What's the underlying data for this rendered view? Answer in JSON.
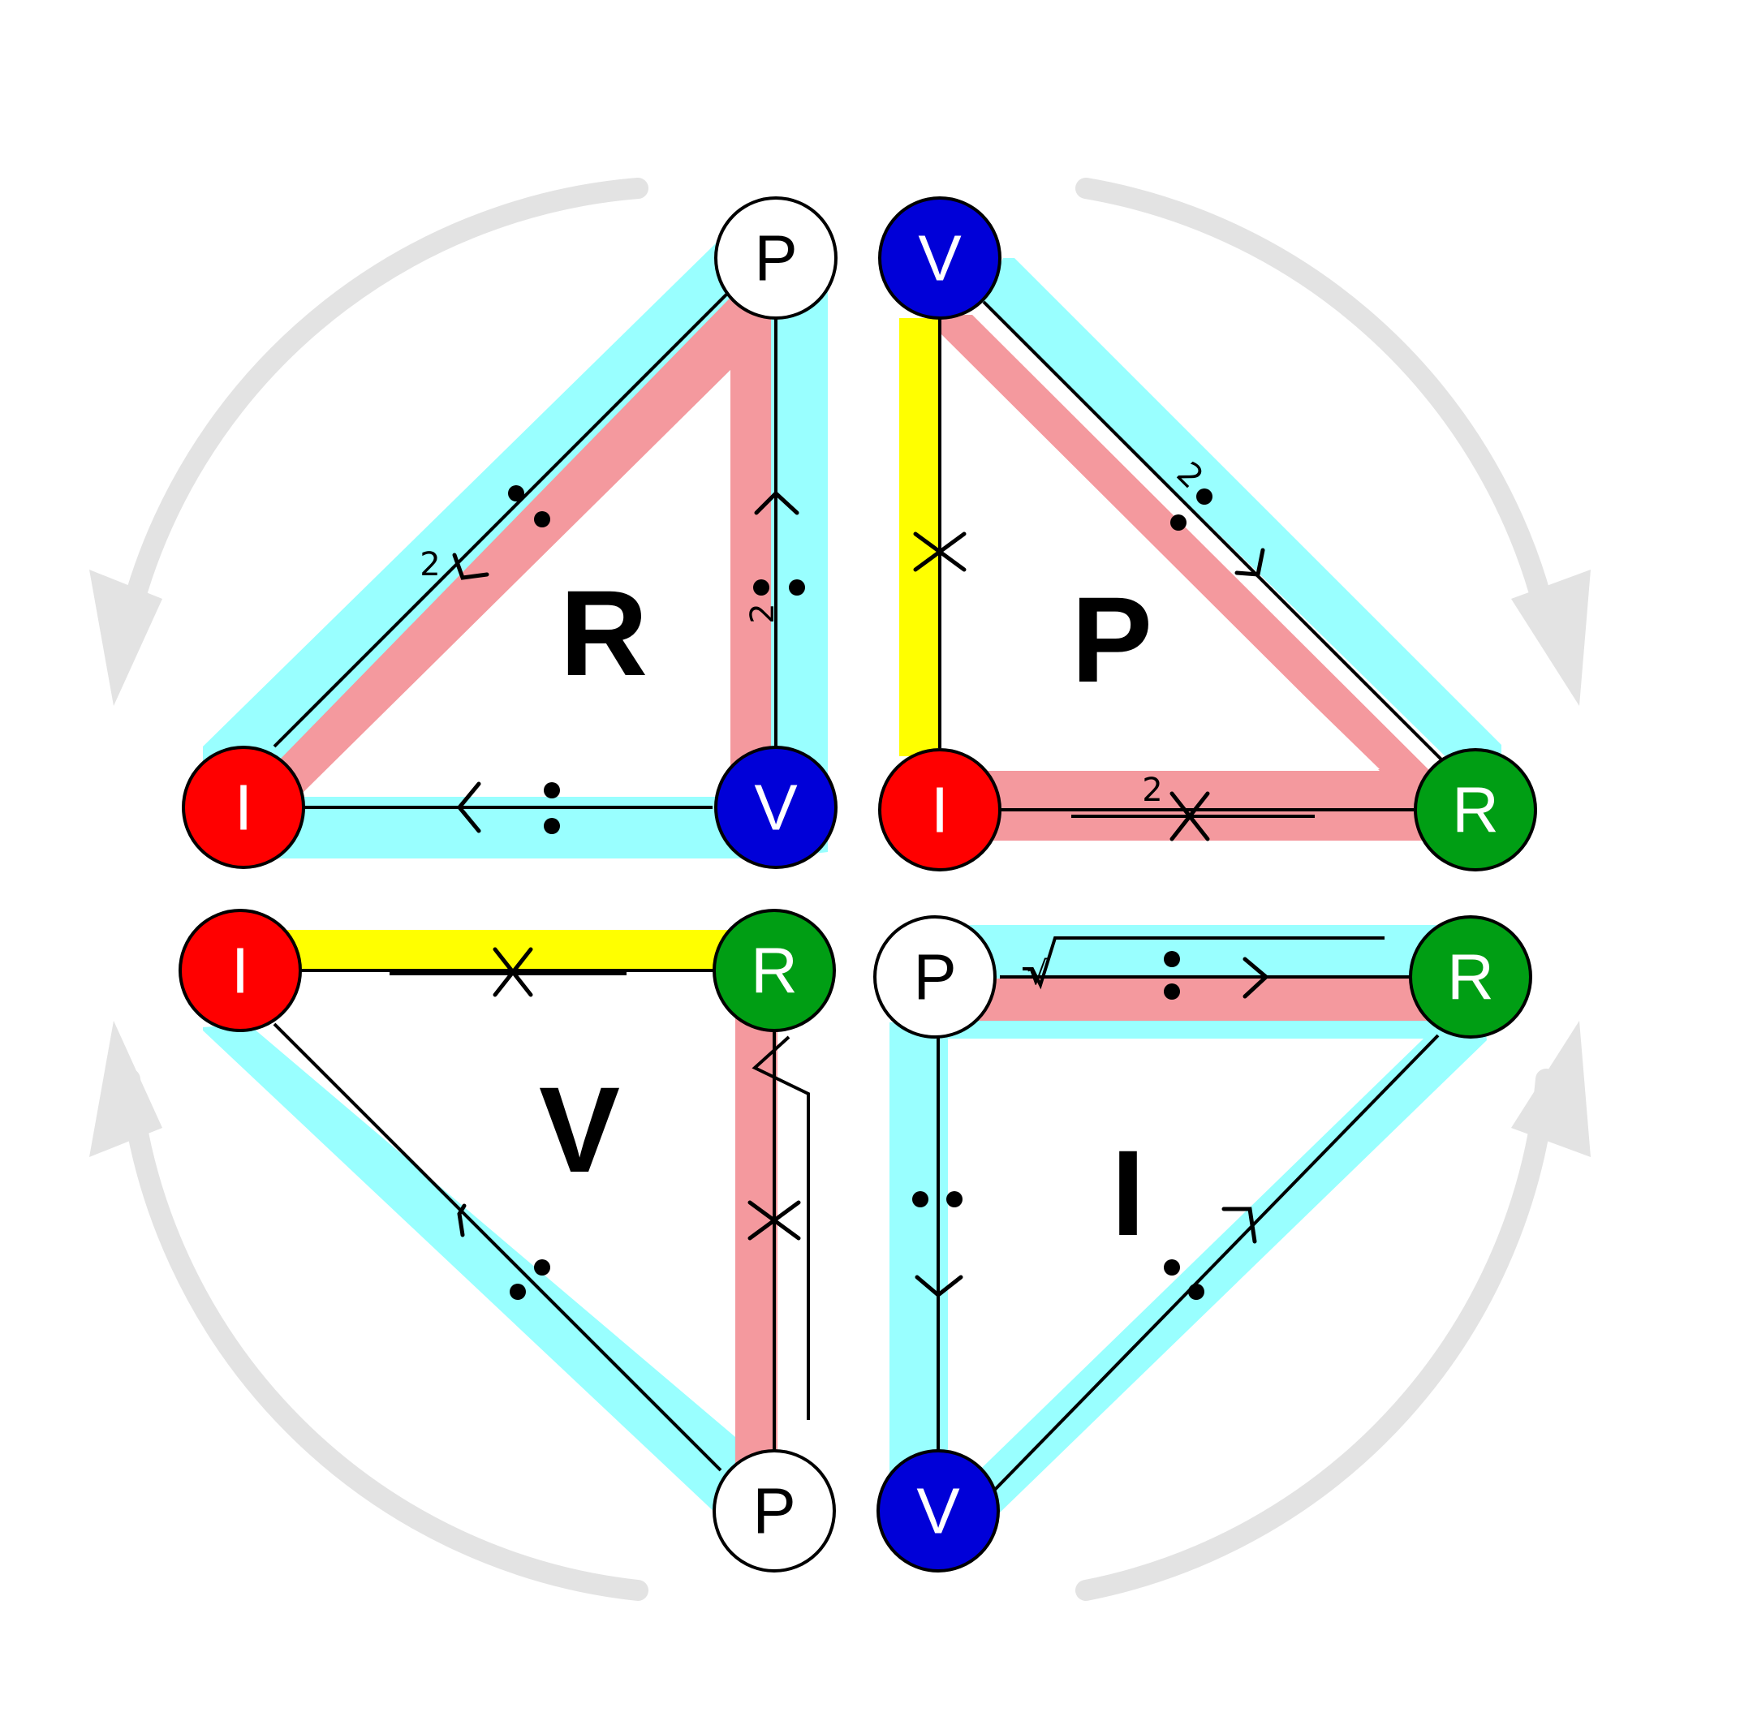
{
  "colors": {
    "cyan_highlight": "#99ffff",
    "pink_highlight": "#f4999e",
    "yellow_highlight": "#ffff00",
    "node_P": "#ffffff",
    "node_V": "#0000d8",
    "node_I": "#ff0000",
    "node_R": "#009e14",
    "cycle_arrows": "#e3e3e3"
  },
  "triangles": [
    {
      "title": "R",
      "nodes": [
        {
          "label": "P",
          "color": "white"
        },
        {
          "label": "I",
          "color": "red"
        },
        {
          "label": "V",
          "color": "blue"
        }
      ],
      "operators": {
        "hyp": "÷",
        "hyp_power": "2",
        "vert": "÷",
        "vert_power": "2",
        "base": "÷"
      }
    },
    {
      "title": "P",
      "nodes": [
        {
          "label": "V",
          "color": "blue"
        },
        {
          "label": "I",
          "color": "red"
        },
        {
          "label": "R",
          "color": "green"
        }
      ],
      "operators": {
        "hyp": "÷",
        "hyp_power": "2",
        "vert": "×",
        "base": "×",
        "base_power": "2"
      }
    },
    {
      "title": "V",
      "nodes": [
        {
          "label": "I",
          "color": "red"
        },
        {
          "label": "R",
          "color": "green"
        },
        {
          "label": "P",
          "color": "white"
        }
      ],
      "operators": {
        "top": "×",
        "hyp": "÷",
        "vert": "×",
        "vert_root": "√"
      }
    },
    {
      "title": "I",
      "nodes": [
        {
          "label": "P",
          "color": "white"
        },
        {
          "label": "R",
          "color": "green"
        },
        {
          "label": "V",
          "color": "blue"
        }
      ],
      "operators": {
        "top": "÷",
        "top_root": "√",
        "vert": "÷",
        "hyp": "÷"
      }
    }
  ],
  "cycle_arrows": [
    {
      "icon": "curved-arrow-clockwise-icon"
    },
    {
      "icon": "curved-arrow-clockwise-icon"
    },
    {
      "icon": "curved-arrow-clockwise-icon"
    },
    {
      "icon": "curved-arrow-clockwise-icon"
    }
  ]
}
